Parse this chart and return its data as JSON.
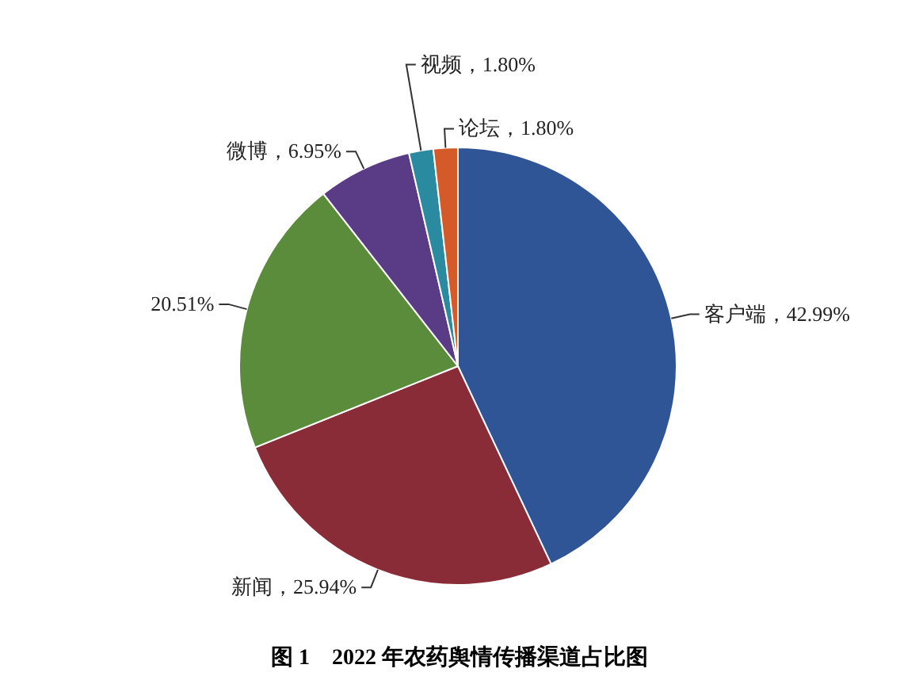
{
  "chart_data": {
    "type": "pie",
    "title": "图 1　2022 年农药舆情传播渠道占比图",
    "categories": [
      "客户端",
      "新闻",
      null,
      "微博",
      "视频",
      "论坛"
    ],
    "values": [
      42.99,
      25.94,
      20.51,
      6.95,
      1.8,
      1.8
    ],
    "value_labels": [
      "，42.99%",
      "，25.94%",
      "20.51%",
      "，6.95%",
      "，1.80%",
      "，1.80%"
    ],
    "colors": [
      "#2f5597",
      "#8a2b38",
      "#5b8c3b",
      "#5a3b86",
      "#2a8aa0",
      "#d45a2a"
    ],
    "legend": false
  }
}
